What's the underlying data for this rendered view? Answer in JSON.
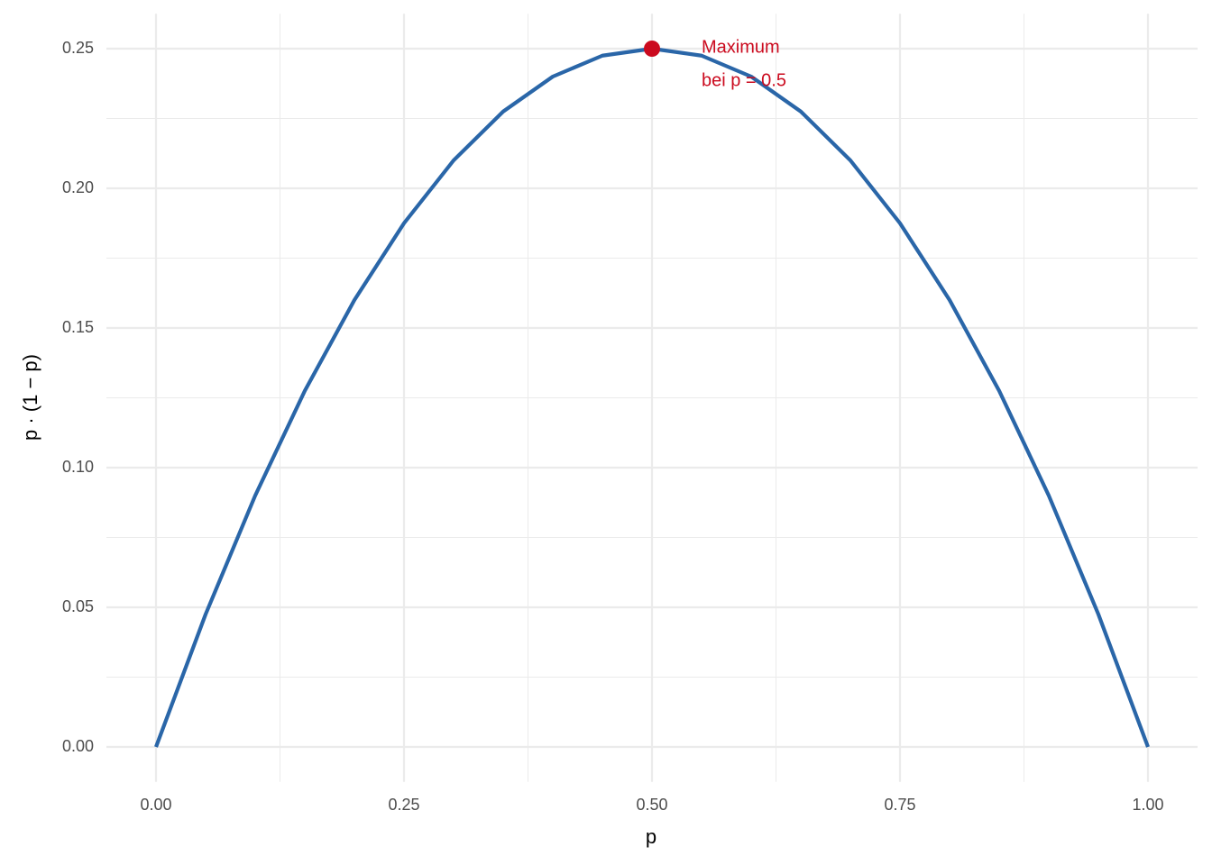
{
  "chart_data": {
    "type": "line",
    "x_label": "p",
    "y_label": "p · (1 − p)",
    "x": [
      0,
      0.05,
      0.1,
      0.15,
      0.2,
      0.25,
      0.3,
      0.35,
      0.4,
      0.45,
      0.5,
      0.55,
      0.6,
      0.65,
      0.7,
      0.75,
      0.8,
      0.85,
      0.9,
      0.95,
      1
    ],
    "values": [
      0,
      0.0475,
      0.09,
      0.1275,
      0.16,
      0.1875,
      0.21,
      0.2275,
      0.24,
      0.2475,
      0.25,
      0.2475,
      0.24,
      0.2275,
      0.21,
      0.1875,
      0.16,
      0.1275,
      0.09,
      0.0475,
      0
    ],
    "color": "#2a66a8",
    "highlight": {
      "x": 0.5,
      "y": 0.25,
      "color": "#cb0a1e"
    },
    "annotation": [
      "Maximum",
      "bei p = 0.5"
    ],
    "xlim": [
      -0.05,
      1.05
    ],
    "ylim": [
      -0.0125,
      0.2625
    ],
    "xticks": [
      {
        "value": 0,
        "label": "0.00"
      },
      {
        "value": 0.25,
        "label": "0.25"
      },
      {
        "value": 0.5,
        "label": "0.50"
      },
      {
        "value": 0.75,
        "label": "0.75"
      },
      {
        "value": 1,
        "label": "1.00"
      }
    ],
    "yticks": [
      {
        "value": 0,
        "label": "0.00"
      },
      {
        "value": 0.05,
        "label": "0.05"
      },
      {
        "value": 0.1,
        "label": "0.10"
      },
      {
        "value": 0.15,
        "label": "0.15"
      },
      {
        "value": 0.2,
        "label": "0.20"
      },
      {
        "value": 0.25,
        "label": "0.25"
      }
    ],
    "x_minor_grid": [
      0.125,
      0.375,
      0.625,
      0.875
    ],
    "y_minor_grid": [
      0.025,
      0.075,
      0.125,
      0.175,
      0.225
    ],
    "grid": true
  }
}
